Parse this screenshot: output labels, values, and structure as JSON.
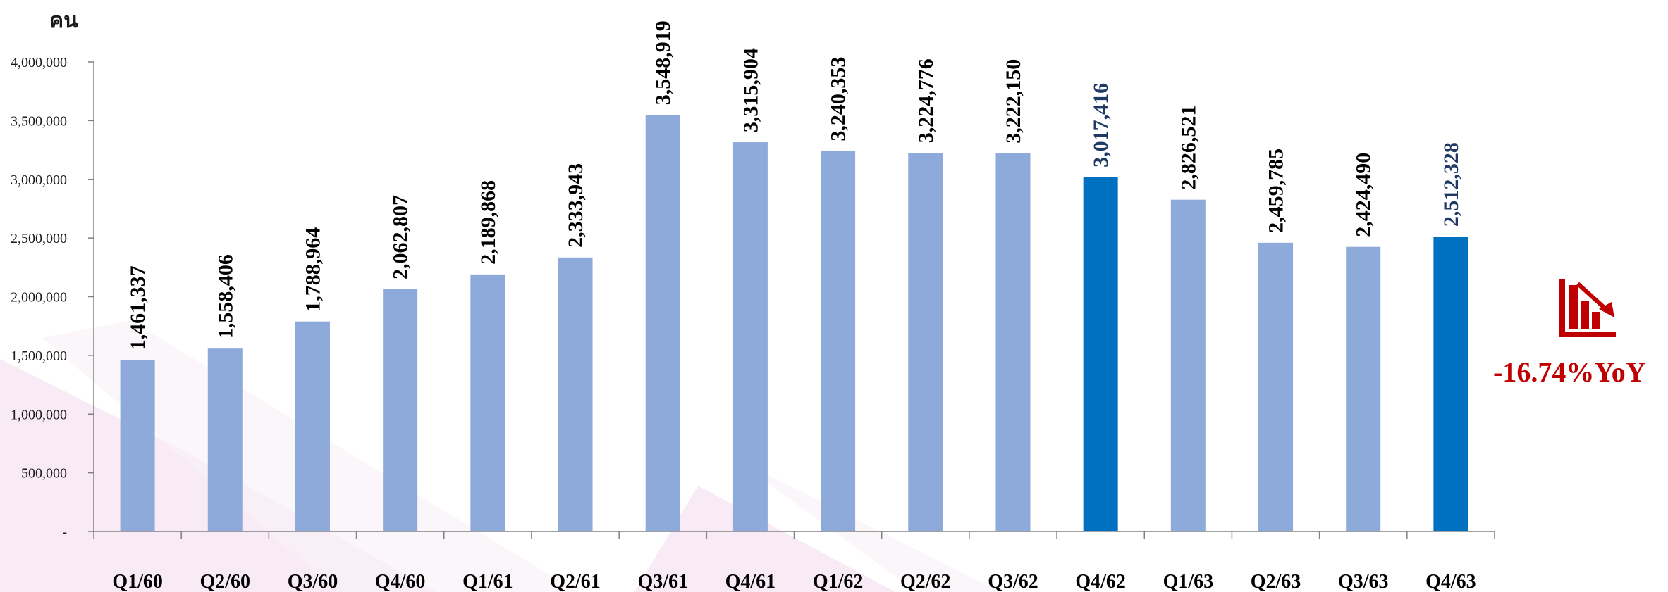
{
  "unit_label": "คน",
  "yoy_change": "-16.74%YoY",
  "icon": "chart-down-trend-icon",
  "colors": {
    "bar_default": "#8eaadb",
    "bar_highlight": "#0070c0",
    "label_default": "#000000",
    "label_highlight": "#1f3864",
    "accent_red": "#c00000"
  },
  "chart_data": {
    "type": "bar",
    "categories": [
      "Q1/60",
      "Q2/60",
      "Q3/60",
      "Q4/60",
      "Q1/61",
      "Q2/61",
      "Q3/61",
      "Q4/61",
      "Q1/62",
      "Q2/62",
      "Q3/62",
      "Q4/62",
      "Q1/63",
      "Q2/63",
      "Q3/63",
      "Q4/63"
    ],
    "values": [
      1461337,
      1558406,
      1788964,
      2062807,
      2189868,
      2333943,
      3548919,
      3315904,
      3240353,
      3224776,
      3222150,
      3017416,
      2826521,
      2459785,
      2424490,
      2512328
    ],
    "value_labels": [
      "1,461,337",
      "1,558,406",
      "1,788,964",
      "2,062,807",
      "2,189,868",
      "2,333,943",
      "3,548,919",
      "3,315,904",
      "3,240,353",
      "3,224,776",
      "3,222,150",
      "3,017,416",
      "2,826,521",
      "2,459,785",
      "2,424,490",
      "2,512,328"
    ],
    "highlighted": [
      "Q4/62",
      "Q4/63"
    ],
    "ylim": [
      0,
      4000000
    ],
    "yticks": [
      0,
      500000,
      1000000,
      1500000,
      2000000,
      2500000,
      3000000,
      3500000,
      4000000
    ],
    "ytick_labels": [
      "-",
      "500,000",
      "1,000,000",
      "1,500,000",
      "2,000,000",
      "2,500,000",
      "3,000,000",
      "3,500,000",
      "4,000,000"
    ],
    "title": "",
    "xlabel": "",
    "ylabel": "คน",
    "grid": false
  }
}
